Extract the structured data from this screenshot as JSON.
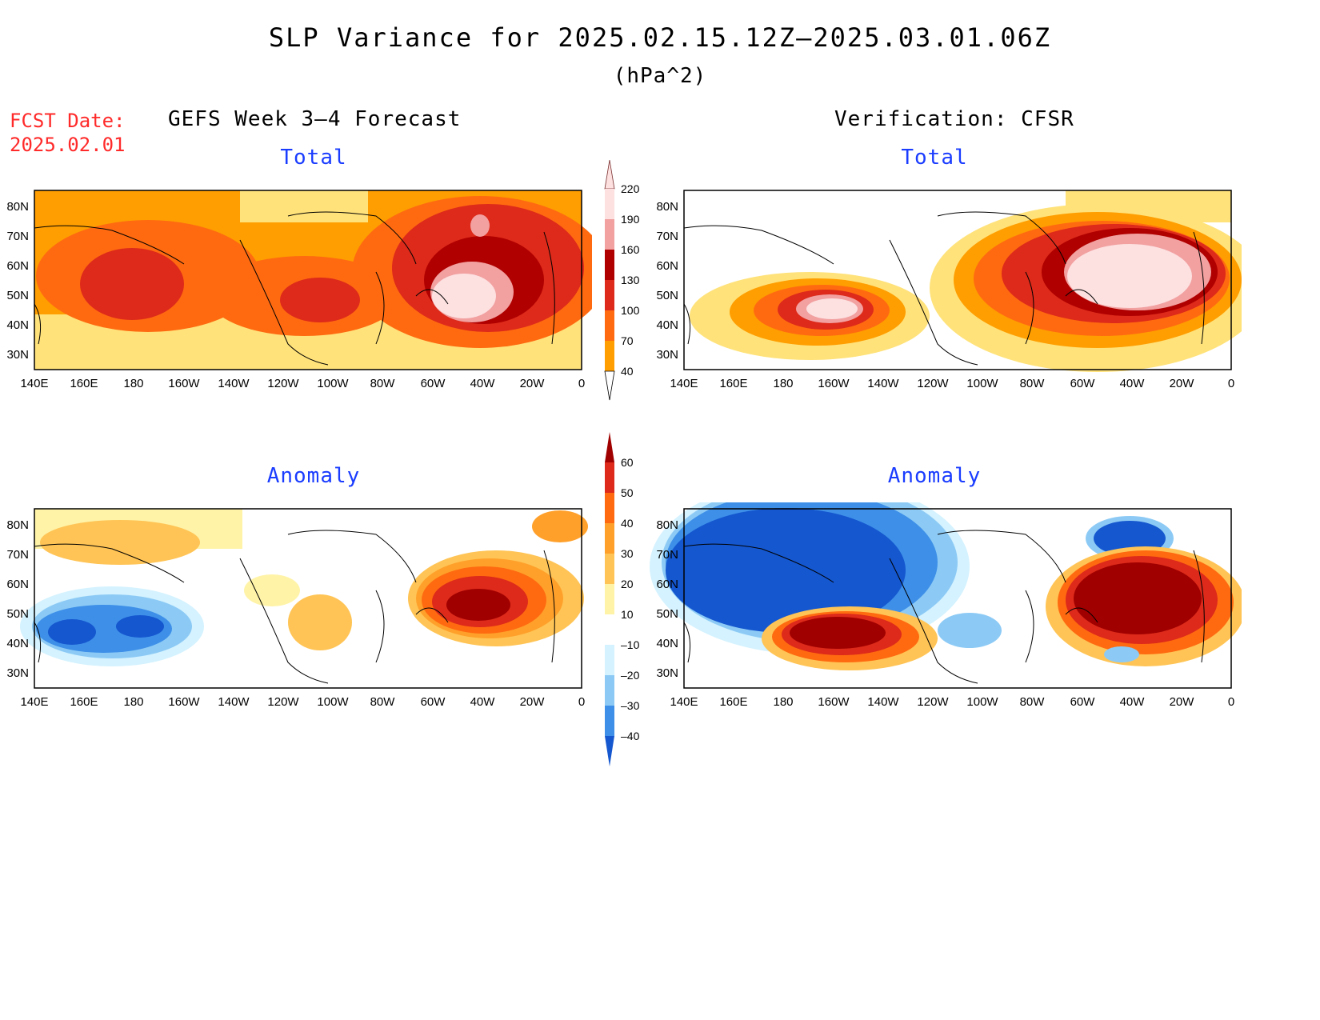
{
  "header": {
    "title": "SLP Variance for 2025.02.15.12Z–2025.03.01.06Z",
    "units": "(hPa^2)",
    "fcst_label": "FCST Date:",
    "fcst_date": "2025.02.01"
  },
  "columns": {
    "left": "GEFS Week 3–4 Forecast",
    "right": "Verification: CFSR"
  },
  "panel_titles": {
    "total": "Total",
    "anomaly": "Anomaly"
  },
  "axes": {
    "lat_labels": [
      "80N",
      "70N",
      "60N",
      "50N",
      "40N",
      "30N"
    ],
    "lon_labels": [
      "140E",
      "160E",
      "180",
      "160W",
      "140W",
      "120W",
      "100W",
      "80W",
      "60W",
      "40W",
      "20W",
      "0"
    ]
  },
  "colorbars": {
    "total": {
      "levels": [
        "220",
        "190",
        "160",
        "130",
        "100",
        "70",
        "40"
      ],
      "colors": [
        "#fde0e0",
        "#f2a0a0",
        "#b00000",
        "#dd2a1a",
        "#ff6a10",
        "#ff9e00",
        "#ffe27a"
      ]
    },
    "anomaly": {
      "levels": [
        "60",
        "50",
        "40",
        "30",
        "20",
        "10",
        "–10",
        "–20",
        "–30",
        "–40"
      ],
      "colors": [
        "#a00000",
        "#dd2a1a",
        "#ff6a10",
        "#ffa02a",
        "#ffc455",
        "#fff3a8",
        "#ffffff",
        "#d4f2ff",
        "#8ccaf5",
        "#3d8fe8",
        "#1557cf"
      ]
    }
  },
  "colors": {
    "title_blue": "#1a3cff",
    "fcst_red": "#ff2a2a"
  }
}
